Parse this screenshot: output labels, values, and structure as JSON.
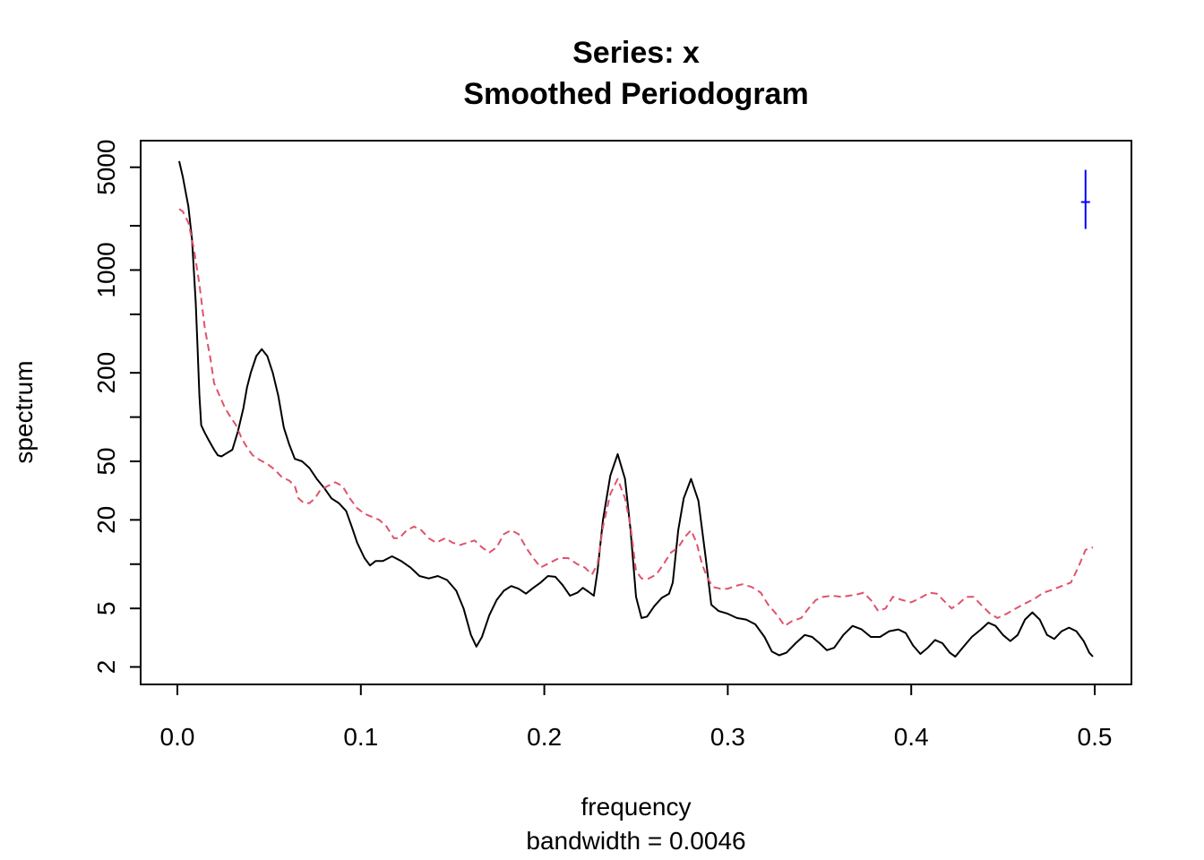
{
  "chart_data": {
    "type": "line",
    "title": "Series: x",
    "subtitle": "Smoothed Periodogram",
    "xlabel": "frequency",
    "xlabel_sub": "bandwidth = 0.0046",
    "ylabel": "spectrum",
    "y_scale": "log",
    "xlim": [
      0,
      0.5
    ],
    "ylim": [
      1.8,
      6500
    ],
    "x_ticks": [
      0.0,
      0.1,
      0.2,
      0.3,
      0.4,
      0.5
    ],
    "x_tick_labels": [
      "0.0",
      "0.1",
      "0.2",
      "0.3",
      "0.4",
      "0.5"
    ],
    "y_ticks": [
      2,
      5,
      10,
      20,
      50,
      100,
      200,
      500,
      1000,
      2000,
      5000
    ],
    "y_tick_labels": [
      "2",
      "5",
      "",
      "20",
      "50",
      "",
      "200",
      "",
      "1000",
      "",
      "5000"
    ],
    "grid": false,
    "legend": "none",
    "series": [
      {
        "color": "#000000",
        "dash": "solid",
        "points": [
          [
            0.001,
            5500
          ],
          [
            0.003,
            4300
          ],
          [
            0.006,
            2700
          ],
          [
            0.008,
            1600
          ],
          [
            0.01,
            600
          ],
          [
            0.011,
            300
          ],
          [
            0.012,
            140
          ],
          [
            0.013,
            88
          ],
          [
            0.015,
            78
          ],
          [
            0.017,
            70
          ],
          [
            0.02,
            60
          ],
          [
            0.022,
            55
          ],
          [
            0.024,
            54
          ],
          [
            0.027,
            57
          ],
          [
            0.03,
            60
          ],
          [
            0.033,
            80
          ],
          [
            0.036,
            115
          ],
          [
            0.038,
            160
          ],
          [
            0.04,
            200
          ],
          [
            0.043,
            260
          ],
          [
            0.046,
            290
          ],
          [
            0.049,
            260
          ],
          [
            0.052,
            200
          ],
          [
            0.055,
            140
          ],
          [
            0.058,
            85
          ],
          [
            0.061,
            65
          ],
          [
            0.064,
            52
          ],
          [
            0.068,
            50
          ],
          [
            0.072,
            45
          ],
          [
            0.076,
            38
          ],
          [
            0.08,
            33
          ],
          [
            0.084,
            28
          ],
          [
            0.088,
            26
          ],
          [
            0.092,
            23
          ],
          [
            0.095,
            18
          ],
          [
            0.098,
            14
          ],
          [
            0.102,
            11
          ],
          [
            0.105,
            9.8
          ],
          [
            0.108,
            10.5
          ],
          [
            0.112,
            10.5
          ],
          [
            0.117,
            11.3
          ],
          [
            0.122,
            10.5
          ],
          [
            0.127,
            9.5
          ],
          [
            0.132,
            8.3
          ],
          [
            0.137,
            8.0
          ],
          [
            0.142,
            8.3
          ],
          [
            0.147,
            7.8
          ],
          [
            0.152,
            6.6
          ],
          [
            0.156,
            5.0
          ],
          [
            0.16,
            3.3
          ],
          [
            0.163,
            2.75
          ],
          [
            0.166,
            3.2
          ],
          [
            0.17,
            4.5
          ],
          [
            0.174,
            5.7
          ],
          [
            0.178,
            6.6
          ],
          [
            0.182,
            7.1
          ],
          [
            0.186,
            6.8
          ],
          [
            0.19,
            6.3
          ],
          [
            0.194,
            6.9
          ],
          [
            0.198,
            7.5
          ],
          [
            0.202,
            8.3
          ],
          [
            0.206,
            8.2
          ],
          [
            0.21,
            7.2
          ],
          [
            0.214,
            6.1
          ],
          [
            0.218,
            6.4
          ],
          [
            0.221,
            6.9
          ],
          [
            0.224,
            6.5
          ],
          [
            0.227,
            6.1
          ],
          [
            0.229,
            9
          ],
          [
            0.232,
            20
          ],
          [
            0.236,
            40
          ],
          [
            0.24,
            56
          ],
          [
            0.244,
            38
          ],
          [
            0.247,
            17
          ],
          [
            0.25,
            6
          ],
          [
            0.253,
            4.3
          ],
          [
            0.256,
            4.4
          ],
          [
            0.26,
            5.2
          ],
          [
            0.264,
            5.9
          ],
          [
            0.268,
            6.3
          ],
          [
            0.27,
            7.5
          ],
          [
            0.273,
            17
          ],
          [
            0.276,
            28
          ],
          [
            0.28,
            38
          ],
          [
            0.284,
            27
          ],
          [
            0.288,
            11
          ],
          [
            0.291,
            5.3
          ],
          [
            0.295,
            4.8
          ],
          [
            0.3,
            4.6
          ],
          [
            0.305,
            4.3
          ],
          [
            0.31,
            4.2
          ],
          [
            0.315,
            3.9
          ],
          [
            0.32,
            3.2
          ],
          [
            0.324,
            2.55
          ],
          [
            0.328,
            2.4
          ],
          [
            0.332,
            2.5
          ],
          [
            0.337,
            2.9
          ],
          [
            0.342,
            3.3
          ],
          [
            0.346,
            3.2
          ],
          [
            0.35,
            2.9
          ],
          [
            0.354,
            2.6
          ],
          [
            0.358,
            2.7
          ],
          [
            0.363,
            3.3
          ],
          [
            0.368,
            3.8
          ],
          [
            0.373,
            3.6
          ],
          [
            0.378,
            3.2
          ],
          [
            0.383,
            3.2
          ],
          [
            0.388,
            3.5
          ],
          [
            0.393,
            3.6
          ],
          [
            0.397,
            3.4
          ],
          [
            0.401,
            2.8
          ],
          [
            0.405,
            2.45
          ],
          [
            0.409,
            2.7
          ],
          [
            0.413,
            3.05
          ],
          [
            0.417,
            2.9
          ],
          [
            0.421,
            2.5
          ],
          [
            0.424,
            2.35
          ],
          [
            0.428,
            2.7
          ],
          [
            0.433,
            3.2
          ],
          [
            0.438,
            3.6
          ],
          [
            0.442,
            4.0
          ],
          [
            0.446,
            3.8
          ],
          [
            0.45,
            3.3
          ],
          [
            0.454,
            3.0
          ],
          [
            0.458,
            3.3
          ],
          [
            0.462,
            4.2
          ],
          [
            0.466,
            4.7
          ],
          [
            0.47,
            4.2
          ],
          [
            0.474,
            3.3
          ],
          [
            0.478,
            3.1
          ],
          [
            0.482,
            3.5
          ],
          [
            0.486,
            3.7
          ],
          [
            0.49,
            3.5
          ],
          [
            0.494,
            3.0
          ],
          [
            0.497,
            2.5
          ],
          [
            0.499,
            2.35
          ]
        ]
      },
      {
        "color": "#DF536B",
        "dash": "dashed",
        "points": [
          [
            0.001,
            2600
          ],
          [
            0.003,
            2500
          ],
          [
            0.006,
            2100
          ],
          [
            0.009,
            1400
          ],
          [
            0.012,
            800
          ],
          [
            0.015,
            400
          ],
          [
            0.018,
            250
          ],
          [
            0.02,
            170
          ],
          [
            0.023,
            140
          ],
          [
            0.026,
            115
          ],
          [
            0.029,
            100
          ],
          [
            0.032,
            88
          ],
          [
            0.035,
            72
          ],
          [
            0.038,
            62
          ],
          [
            0.041,
            55
          ],
          [
            0.045,
            51
          ],
          [
            0.049,
            48
          ],
          [
            0.053,
            44
          ],
          [
            0.057,
            39
          ],
          [
            0.061,
            37
          ],
          [
            0.064,
            34
          ],
          [
            0.066,
            28
          ],
          [
            0.069,
            26
          ],
          [
            0.072,
            26
          ],
          [
            0.075,
            28
          ],
          [
            0.078,
            32
          ],
          [
            0.082,
            34
          ],
          [
            0.086,
            36
          ],
          [
            0.09,
            34
          ],
          [
            0.094,
            28
          ],
          [
            0.098,
            24
          ],
          [
            0.102,
            22
          ],
          [
            0.106,
            21
          ],
          [
            0.11,
            20
          ],
          [
            0.114,
            18
          ],
          [
            0.118,
            15
          ],
          [
            0.121,
            15
          ],
          [
            0.125,
            17
          ],
          [
            0.129,
            18
          ],
          [
            0.133,
            17
          ],
          [
            0.137,
            15
          ],
          [
            0.141,
            14
          ],
          [
            0.146,
            15
          ],
          [
            0.15,
            14
          ],
          [
            0.154,
            13.5
          ],
          [
            0.158,
            14
          ],
          [
            0.162,
            14.5
          ],
          [
            0.166,
            13
          ],
          [
            0.17,
            12
          ],
          [
            0.174,
            13
          ],
          [
            0.178,
            16
          ],
          [
            0.182,
            17
          ],
          [
            0.186,
            16
          ],
          [
            0.19,
            13
          ],
          [
            0.194,
            11
          ],
          [
            0.198,
            9.5
          ],
          [
            0.203,
            10.2
          ],
          [
            0.208,
            11
          ],
          [
            0.213,
            11
          ],
          [
            0.218,
            10
          ],
          [
            0.222,
            9.5
          ],
          [
            0.226,
            8.5
          ],
          [
            0.229,
            10
          ],
          [
            0.232,
            18
          ],
          [
            0.236,
            30
          ],
          [
            0.24,
            38
          ],
          [
            0.244,
            28
          ],
          [
            0.247,
            18
          ],
          [
            0.25,
            9
          ],
          [
            0.253,
            8
          ],
          [
            0.257,
            8
          ],
          [
            0.261,
            8.5
          ],
          [
            0.265,
            10
          ],
          [
            0.269,
            12
          ],
          [
            0.273,
            13
          ],
          [
            0.277,
            15.5
          ],
          [
            0.28,
            17
          ],
          [
            0.283,
            14
          ],
          [
            0.286,
            10
          ],
          [
            0.289,
            8
          ],
          [
            0.292,
            7
          ],
          [
            0.296,
            6.8
          ],
          [
            0.3,
            6.8
          ],
          [
            0.304,
            7.1
          ],
          [
            0.308,
            7.3
          ],
          [
            0.313,
            7.0
          ],
          [
            0.318,
            6.4
          ],
          [
            0.322,
            5.3
          ],
          [
            0.327,
            4.5
          ],
          [
            0.331,
            3.8
          ],
          [
            0.335,
            4.1
          ],
          [
            0.34,
            4.3
          ],
          [
            0.344,
            5.0
          ],
          [
            0.348,
            5.7
          ],
          [
            0.352,
            6.0
          ],
          [
            0.357,
            6.1
          ],
          [
            0.362,
            6.0
          ],
          [
            0.366,
            6.1
          ],
          [
            0.37,
            6.2
          ],
          [
            0.374,
            6.4
          ],
          [
            0.378,
            5.7
          ],
          [
            0.382,
            4.8
          ],
          [
            0.386,
            5.0
          ],
          [
            0.39,
            6.0
          ],
          [
            0.395,
            5.7
          ],
          [
            0.4,
            5.5
          ],
          [
            0.405,
            5.9
          ],
          [
            0.41,
            6.4
          ],
          [
            0.414,
            6.3
          ],
          [
            0.418,
            5.6
          ],
          [
            0.422,
            5.0
          ],
          [
            0.426,
            5.4
          ],
          [
            0.43,
            6.0
          ],
          [
            0.434,
            6.0
          ],
          [
            0.438,
            5.3
          ],
          [
            0.443,
            4.6
          ],
          [
            0.447,
            4.3
          ],
          [
            0.452,
            4.6
          ],
          [
            0.457,
            5.0
          ],
          [
            0.462,
            5.4
          ],
          [
            0.467,
            5.8
          ],
          [
            0.472,
            6.4
          ],
          [
            0.477,
            6.7
          ],
          [
            0.482,
            7.1
          ],
          [
            0.487,
            7.5
          ],
          [
            0.491,
            9.5
          ],
          [
            0.495,
            12.5
          ],
          [
            0.499,
            13
          ]
        ]
      }
    ],
    "ci_bar": {
      "x": 0.495,
      "center": 2900,
      "lower": 1900,
      "upper": 4800,
      "color": "#0000FF"
    }
  }
}
